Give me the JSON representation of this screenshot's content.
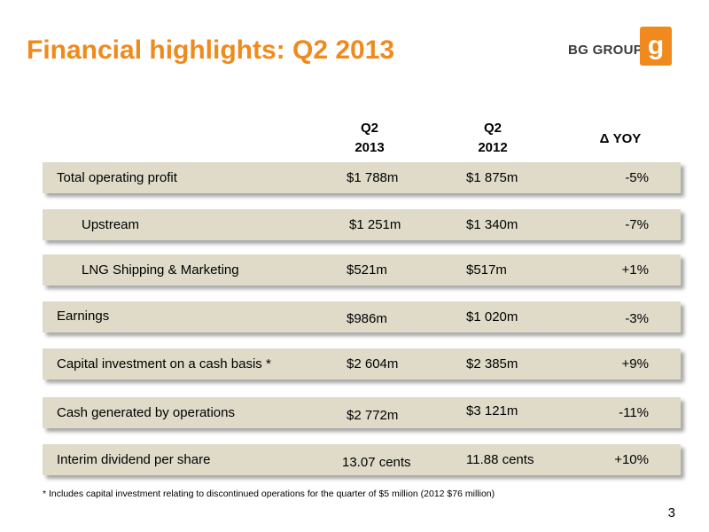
{
  "title": "Financial highlights: Q2 2013",
  "logo": {
    "text": "BG GROUP",
    "icon": "bg-group-logo-icon",
    "color": "#f08a1c"
  },
  "columns": {
    "q2_2013": {
      "line1": "Q2",
      "line2": "2013"
    },
    "q2_2012": {
      "line1": "Q2",
      "line2": "2012"
    },
    "yoy": "Δ YOY"
  },
  "rows": [
    {
      "label": "Total operating profit",
      "q2_2013": "$1 788m",
      "q2_2012": "$1 875m",
      "yoy": "-5%"
    },
    {
      "label": "Upstream",
      "q2_2013": "$1 251m",
      "q2_2012": "$1 340m",
      "yoy": "-7%"
    },
    {
      "label": "LNG Shipping & Marketing",
      "q2_2013": "$521m",
      "q2_2012": "$517m",
      "yoy": "+1%"
    },
    {
      "label": "Earnings",
      "q2_2013": "$986m",
      "q2_2012": "$1 020m",
      "yoy": "-3%"
    },
    {
      "label": "Capital investment on a cash basis *",
      "q2_2013": "$2 604m",
      "q2_2012": "$2 385m",
      "yoy": "+9%"
    },
    {
      "label": "Cash generated by operations",
      "q2_2013": "$2 772m",
      "q2_2012": "$3 121m",
      "yoy": "-11%"
    },
    {
      "label": "Interim dividend per share",
      "q2_2013": "13.07 cents",
      "q2_2012": "11.88 cents",
      "yoy": "+10%"
    }
  ],
  "footnote": "* Includes capital investment relating to discontinued operations for the quarter of $5 million (2012 $76 million)",
  "page_number": "3",
  "colors": {
    "title": "#f08a1c",
    "row_background": "#dfdbc8"
  }
}
